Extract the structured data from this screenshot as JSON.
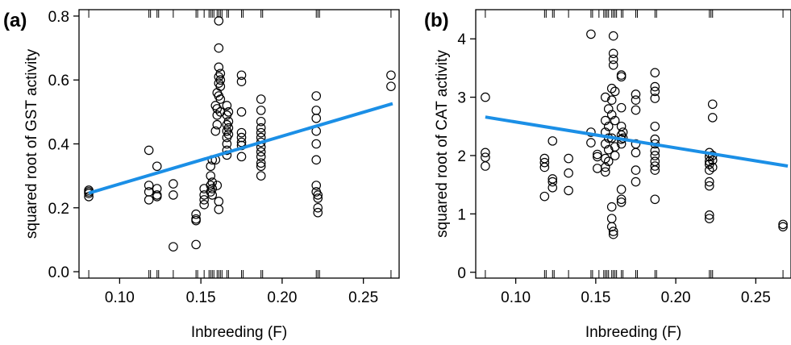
{
  "figure": {
    "panel_a_label": "(a)",
    "panel_b_label": "(b)"
  },
  "colors": {
    "fit_line": "#1b8fe6",
    "point_stroke": "#000000",
    "axis": "#000000"
  },
  "chart_data": [
    {
      "type": "scatter",
      "panel": "(a)",
      "xlabel": "Inbreeding (F)",
      "ylabel": "squared root of GST activity",
      "xlim": [
        0.075,
        0.272
      ],
      "ylim": [
        -0.02,
        0.82
      ],
      "xticks": [
        0.1,
        0.15,
        0.2,
        0.25
      ],
      "xtick_labels": [
        "0.10",
        "0.15",
        "0.20",
        "0.25"
      ],
      "yticks": [
        0.0,
        0.2,
        0.4,
        0.6,
        0.8
      ],
      "ytick_labels": [
        "0.0",
        "0.2",
        "0.4",
        "0.6",
        "0.8"
      ],
      "rug": [
        0.081,
        0.118,
        0.119,
        0.123,
        0.124,
        0.133,
        0.147,
        0.148,
        0.152,
        0.155,
        0.156,
        0.157,
        0.158,
        0.16,
        0.161,
        0.162,
        0.163,
        0.166,
        0.167,
        0.175,
        0.176,
        0.187,
        0.188,
        0.221,
        0.222,
        0.223,
        0.267
      ],
      "fit_line": {
        "x": [
          0.081,
          0.268
        ],
        "y": [
          0.246,
          0.526
        ]
      },
      "points": [
        {
          "x": 0.081,
          "y": 0.235
        },
        {
          "x": 0.081,
          "y": 0.245
        },
        {
          "x": 0.081,
          "y": 0.25
        },
        {
          "x": 0.081,
          "y": 0.255
        },
        {
          "x": 0.118,
          "y": 0.38
        },
        {
          "x": 0.118,
          "y": 0.27
        },
        {
          "x": 0.118,
          "y": 0.25
        },
        {
          "x": 0.118,
          "y": 0.225
        },
        {
          "x": 0.123,
          "y": 0.33
        },
        {
          "x": 0.123,
          "y": 0.26
        },
        {
          "x": 0.123,
          "y": 0.24
        },
        {
          "x": 0.123,
          "y": 0.235
        },
        {
          "x": 0.133,
          "y": 0.275
        },
        {
          "x": 0.133,
          "y": 0.24
        },
        {
          "x": 0.133,
          "y": 0.078
        },
        {
          "x": 0.147,
          "y": 0.18
        },
        {
          "x": 0.147,
          "y": 0.165
        },
        {
          "x": 0.147,
          "y": 0.16
        },
        {
          "x": 0.147,
          "y": 0.085
        },
        {
          "x": 0.152,
          "y": 0.26
        },
        {
          "x": 0.152,
          "y": 0.24
        },
        {
          "x": 0.152,
          "y": 0.225
        },
        {
          "x": 0.152,
          "y": 0.21
        },
        {
          "x": 0.156,
          "y": 0.33
        },
        {
          "x": 0.156,
          "y": 0.3
        },
        {
          "x": 0.156,
          "y": 0.27
        },
        {
          "x": 0.156,
          "y": 0.25
        },
        {
          "x": 0.157,
          "y": 0.35
        },
        {
          "x": 0.157,
          "y": 0.28
        },
        {
          "x": 0.157,
          "y": 0.26
        },
        {
          "x": 0.157,
          "y": 0.24
        },
        {
          "x": 0.159,
          "y": 0.52
        },
        {
          "x": 0.159,
          "y": 0.44
        },
        {
          "x": 0.159,
          "y": 0.35
        },
        {
          "x": 0.16,
          "y": 0.56
        },
        {
          "x": 0.16,
          "y": 0.51
        },
        {
          "x": 0.16,
          "y": 0.49
        },
        {
          "x": 0.16,
          "y": 0.46
        },
        {
          "x": 0.16,
          "y": 0.27
        },
        {
          "x": 0.161,
          "y": 0.785
        },
        {
          "x": 0.161,
          "y": 0.7
        },
        {
          "x": 0.161,
          "y": 0.64
        },
        {
          "x": 0.161,
          "y": 0.61
        },
        {
          "x": 0.161,
          "y": 0.59
        },
        {
          "x": 0.161,
          "y": 0.55
        },
        {
          "x": 0.161,
          "y": 0.22
        },
        {
          "x": 0.161,
          "y": 0.195
        },
        {
          "x": 0.162,
          "y": 0.62
        },
        {
          "x": 0.162,
          "y": 0.6
        },
        {
          "x": 0.162,
          "y": 0.58
        },
        {
          "x": 0.162,
          "y": 0.54
        },
        {
          "x": 0.162,
          "y": 0.5
        },
        {
          "x": 0.166,
          "y": 0.52
        },
        {
          "x": 0.166,
          "y": 0.49
        },
        {
          "x": 0.166,
          "y": 0.46
        },
        {
          "x": 0.166,
          "y": 0.44
        },
        {
          "x": 0.166,
          "y": 0.42
        },
        {
          "x": 0.166,
          "y": 0.4
        },
        {
          "x": 0.166,
          "y": 0.38
        },
        {
          "x": 0.166,
          "y": 0.365
        },
        {
          "x": 0.167,
          "y": 0.5
        },
        {
          "x": 0.167,
          "y": 0.47
        },
        {
          "x": 0.167,
          "y": 0.45
        },
        {
          "x": 0.167,
          "y": 0.43
        },
        {
          "x": 0.175,
          "y": 0.615
        },
        {
          "x": 0.175,
          "y": 0.595
        },
        {
          "x": 0.175,
          "y": 0.5
        },
        {
          "x": 0.175,
          "y": 0.435
        },
        {
          "x": 0.175,
          "y": 0.42
        },
        {
          "x": 0.175,
          "y": 0.405
        },
        {
          "x": 0.175,
          "y": 0.395
        },
        {
          "x": 0.175,
          "y": 0.36
        },
        {
          "x": 0.187,
          "y": 0.54
        },
        {
          "x": 0.187,
          "y": 0.505
        },
        {
          "x": 0.187,
          "y": 0.47
        },
        {
          "x": 0.187,
          "y": 0.45
        },
        {
          "x": 0.187,
          "y": 0.435
        },
        {
          "x": 0.187,
          "y": 0.42
        },
        {
          "x": 0.187,
          "y": 0.405
        },
        {
          "x": 0.187,
          "y": 0.39
        },
        {
          "x": 0.187,
          "y": 0.375
        },
        {
          "x": 0.187,
          "y": 0.36
        },
        {
          "x": 0.187,
          "y": 0.34
        },
        {
          "x": 0.187,
          "y": 0.33
        },
        {
          "x": 0.187,
          "y": 0.3
        },
        {
          "x": 0.221,
          "y": 0.55
        },
        {
          "x": 0.221,
          "y": 0.505
        },
        {
          "x": 0.221,
          "y": 0.48
        },
        {
          "x": 0.221,
          "y": 0.44
        },
        {
          "x": 0.221,
          "y": 0.4
        },
        {
          "x": 0.221,
          "y": 0.35
        },
        {
          "x": 0.221,
          "y": 0.27
        },
        {
          "x": 0.221,
          "y": 0.25
        },
        {
          "x": 0.222,
          "y": 0.24
        },
        {
          "x": 0.222,
          "y": 0.23
        },
        {
          "x": 0.222,
          "y": 0.2
        },
        {
          "x": 0.222,
          "y": 0.185
        },
        {
          "x": 0.267,
          "y": 0.615
        },
        {
          "x": 0.267,
          "y": 0.58
        }
      ]
    },
    {
      "type": "scatter",
      "panel": "(b)",
      "xlabel": "Inbreeding (F)",
      "ylabel": "squared root of CAT activity",
      "xlim": [
        0.075,
        0.272
      ],
      "ylim": [
        -0.1,
        4.5
      ],
      "xticks": [
        0.1,
        0.15,
        0.2,
        0.25
      ],
      "xtick_labels": [
        "0.10",
        "0.15",
        "0.20",
        "0.25"
      ],
      "yticks": [
        0,
        1,
        2,
        3,
        4
      ],
      "ytick_labels": [
        "0",
        "1",
        "2",
        "3",
        "4"
      ],
      "rug": [
        0.081,
        0.118,
        0.119,
        0.123,
        0.124,
        0.133,
        0.147,
        0.148,
        0.152,
        0.155,
        0.156,
        0.157,
        0.158,
        0.16,
        0.161,
        0.162,
        0.163,
        0.166,
        0.167,
        0.175,
        0.176,
        0.187,
        0.188,
        0.221,
        0.222,
        0.223,
        0.267
      ],
      "fit_line": {
        "x": [
          0.081,
          0.27
        ],
        "y": [
          2.66,
          1.82
        ]
      },
      "points": [
        {
          "x": 0.081,
          "y": 3.0
        },
        {
          "x": 0.081,
          "y": 2.05
        },
        {
          "x": 0.081,
          "y": 1.97
        },
        {
          "x": 0.081,
          "y": 1.82
        },
        {
          "x": 0.118,
          "y": 1.95
        },
        {
          "x": 0.118,
          "y": 1.88
        },
        {
          "x": 0.118,
          "y": 1.8
        },
        {
          "x": 0.118,
          "y": 1.3
        },
        {
          "x": 0.123,
          "y": 2.25
        },
        {
          "x": 0.123,
          "y": 1.6
        },
        {
          "x": 0.123,
          "y": 1.55
        },
        {
          "x": 0.123,
          "y": 1.45
        },
        {
          "x": 0.133,
          "y": 1.95
        },
        {
          "x": 0.133,
          "y": 1.7
        },
        {
          "x": 0.133,
          "y": 1.4
        },
        {
          "x": 0.147,
          "y": 4.08
        },
        {
          "x": 0.147,
          "y": 2.4
        },
        {
          "x": 0.147,
          "y": 2.22
        },
        {
          "x": 0.151,
          "y": 2.02
        },
        {
          "x": 0.151,
          "y": 1.98
        },
        {
          "x": 0.151,
          "y": 1.78
        },
        {
          "x": 0.156,
          "y": 3.0
        },
        {
          "x": 0.156,
          "y": 2.6
        },
        {
          "x": 0.156,
          "y": 2.4
        },
        {
          "x": 0.156,
          "y": 2.2
        },
        {
          "x": 0.156,
          "y": 1.95
        },
        {
          "x": 0.156,
          "y": 1.8
        },
        {
          "x": 0.156,
          "y": 1.72
        },
        {
          "x": 0.158,
          "y": 2.8
        },
        {
          "x": 0.158,
          "y": 2.5
        },
        {
          "x": 0.158,
          "y": 2.3
        },
        {
          "x": 0.158,
          "y": 2.1
        },
        {
          "x": 0.158,
          "y": 1.9
        },
        {
          "x": 0.16,
          "y": 3.15
        },
        {
          "x": 0.16,
          "y": 2.95
        },
        {
          "x": 0.16,
          "y": 2.7
        },
        {
          "x": 0.16,
          "y": 2.3
        },
        {
          "x": 0.16,
          "y": 1.12
        },
        {
          "x": 0.16,
          "y": 0.92
        },
        {
          "x": 0.16,
          "y": 0.78
        },
        {
          "x": 0.161,
          "y": 4.05
        },
        {
          "x": 0.161,
          "y": 3.75
        },
        {
          "x": 0.161,
          "y": 3.65
        },
        {
          "x": 0.161,
          "y": 3.55
        },
        {
          "x": 0.161,
          "y": 0.7
        },
        {
          "x": 0.161,
          "y": 0.65
        },
        {
          "x": 0.162,
          "y": 3.1
        },
        {
          "x": 0.162,
          "y": 2.6
        },
        {
          "x": 0.162,
          "y": 2.15
        },
        {
          "x": 0.162,
          "y": 2.0
        },
        {
          "x": 0.166,
          "y": 3.38
        },
        {
          "x": 0.166,
          "y": 3.35
        },
        {
          "x": 0.166,
          "y": 2.82
        },
        {
          "x": 0.166,
          "y": 2.5
        },
        {
          "x": 0.166,
          "y": 2.35
        },
        {
          "x": 0.166,
          "y": 2.28
        },
        {
          "x": 0.166,
          "y": 2.2
        },
        {
          "x": 0.166,
          "y": 1.42
        },
        {
          "x": 0.166,
          "y": 1.25
        },
        {
          "x": 0.166,
          "y": 1.2
        },
        {
          "x": 0.167,
          "y": 2.4
        },
        {
          "x": 0.167,
          "y": 2.3
        },
        {
          "x": 0.175,
          "y": 3.05
        },
        {
          "x": 0.175,
          "y": 2.95
        },
        {
          "x": 0.175,
          "y": 2.78
        },
        {
          "x": 0.175,
          "y": 2.2
        },
        {
          "x": 0.175,
          "y": 2.05
        },
        {
          "x": 0.175,
          "y": 1.75
        },
        {
          "x": 0.175,
          "y": 1.55
        },
        {
          "x": 0.187,
          "y": 3.42
        },
        {
          "x": 0.187,
          "y": 3.18
        },
        {
          "x": 0.187,
          "y": 3.1
        },
        {
          "x": 0.187,
          "y": 2.98
        },
        {
          "x": 0.187,
          "y": 2.5
        },
        {
          "x": 0.187,
          "y": 2.28
        },
        {
          "x": 0.187,
          "y": 2.2
        },
        {
          "x": 0.187,
          "y": 2.08
        },
        {
          "x": 0.187,
          "y": 2.0
        },
        {
          "x": 0.187,
          "y": 1.9
        },
        {
          "x": 0.187,
          "y": 1.82
        },
        {
          "x": 0.187,
          "y": 1.75
        },
        {
          "x": 0.187,
          "y": 1.25
        },
        {
          "x": 0.221,
          "y": 2.05
        },
        {
          "x": 0.221,
          "y": 1.98
        },
        {
          "x": 0.221,
          "y": 1.9
        },
        {
          "x": 0.221,
          "y": 1.85
        },
        {
          "x": 0.221,
          "y": 1.75
        },
        {
          "x": 0.221,
          "y": 1.55
        },
        {
          "x": 0.221,
          "y": 1.48
        },
        {
          "x": 0.221,
          "y": 0.98
        },
        {
          "x": 0.221,
          "y": 0.92
        },
        {
          "x": 0.223,
          "y": 2.88
        },
        {
          "x": 0.223,
          "y": 2.65
        },
        {
          "x": 0.223,
          "y": 2.0
        },
        {
          "x": 0.223,
          "y": 1.92
        },
        {
          "x": 0.223,
          "y": 1.8
        },
        {
          "x": 0.267,
          "y": 0.82
        },
        {
          "x": 0.267,
          "y": 0.78
        }
      ]
    }
  ]
}
